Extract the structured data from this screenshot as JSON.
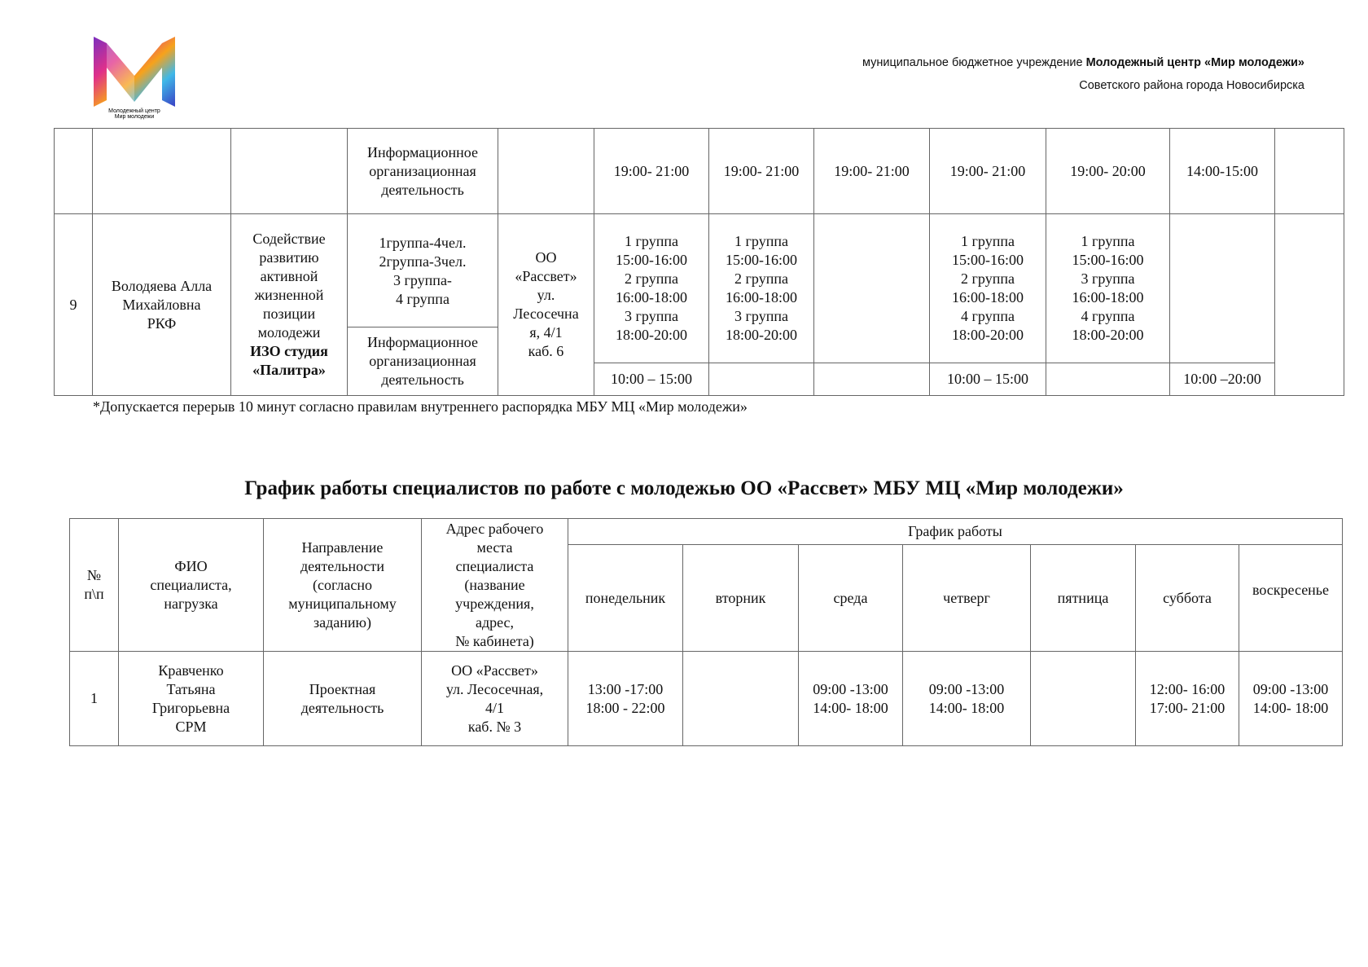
{
  "header": {
    "logo_text": "Молодежный центр Мир молодежи",
    "org_line1_prefix": "муниципальное бюджетное учреждение ",
    "org_line1_bold": "Молодежный центр «Мир молодежи»",
    "org_line2": "Советского района города Новосибирска"
  },
  "table1": {
    "row_cont": {
      "activity": "Информационное\nорганизационная\nдеятельность",
      "mon": "19:00- 21:00",
      "tue": "19:00- 21:00",
      "wed": "19:00- 21:00",
      "thu": "19:00- 21:00",
      "fri": "19:00- 20:00",
      "sat": "14:00-15:00"
    },
    "row9": {
      "num": "9",
      "name": "Володяева Алла\nМихайловна\nРКФ",
      "direction": "Содействие\nразвитию\nактивной\nжизненной\nпозиции\nмолодежи",
      "direction_bold": "ИЗО студия\n«Палитра»",
      "groups": "1группа-4чел.\n2группа-3чел.\n3 группа-\n4 группа",
      "activity": "Информационное\nорганизационная\nдеятельность",
      "address": "ОО\n«Рассвет»\nул.\nЛесосечна\nя, 4/1\nкаб. 6",
      "mon": "1 группа\n15:00-16:00\n2 группа\n16:00-18:00\n3 группа\n18:00-20:00",
      "tue": "1 группа\n15:00-16:00\n2 группа\n16:00-18:00\n3 группа\n18:00-20:00",
      "thu": "1 группа\n15:00-16:00\n2 группа\n16:00-18:00\n4 группа\n18:00-20:00",
      "fri": "1 группа\n15:00-16:00\n3 группа\n16:00-18:00\n4 группа\n18:00-20:00",
      "mon_info": "10:00 – 15:00",
      "thu_info": "10:00 – 15:00",
      "sat_info": "10:00 –20:00"
    }
  },
  "footnote": "*Допускается перерыв 10 минут согласно правилам внутреннего распорядка МБУ МЦ «Мир молодежи»",
  "title": "График работы специалистов по работе с молодежью ОО «Рассвет» МБУ МЦ «Мир молодежи»",
  "table2": {
    "headers": {
      "num": "№\nп\\п",
      "name": "ФИО\nспециалиста,\nнагрузка",
      "direction": "Направление\nдеятельности\n(согласно\nмуниципальному\nзаданию)",
      "address": "Адрес рабочего\nместа\nспециалиста\n(название\nучреждения,\nадрес,\n№ кабинета)",
      "schedule": "График работы",
      "days": [
        "понедельник",
        "вторник",
        "среда",
        "четверг",
        "пятница",
        "суббота",
        "воскресенье"
      ]
    },
    "rows": [
      {
        "num": "1",
        "name": "Кравченко\nТатьяна\nГригорьевна\nСРМ",
        "direction": "Проектная\nдеятельность",
        "address": "ОО «Рассвет»\nул. Лесосечная,\n4/1\nкаб. № 3",
        "days": [
          "13:00 -17:00\n18:00 - 22:00",
          "",
          "09:00 -13:00\n14:00- 18:00",
          "09:00 -13:00\n14:00- 18:00",
          "",
          "12:00- 16:00\n17:00- 21:00",
          "09:00 -13:00\n14:00- 18:00"
        ]
      }
    ]
  }
}
